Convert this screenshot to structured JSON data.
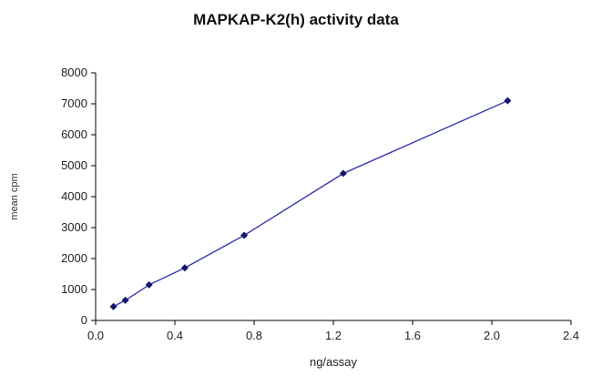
{
  "chart_data": {
    "type": "line",
    "title": "MAPKAP-K2(h) activity data",
    "xlabel": "ng/assay",
    "ylabel": "mean cpm",
    "x": [
      0.09,
      0.15,
      0.27,
      0.45,
      0.75,
      1.25,
      2.08
    ],
    "y": [
      450,
      650,
      1150,
      1700,
      2750,
      4750,
      7100
    ],
    "xlim": [
      0,
      2.4
    ],
    "ylim": [
      0,
      8000
    ],
    "xticks": [
      0,
      0.4,
      0.8,
      1.2,
      1.6,
      2.0,
      2.4
    ],
    "xtick_labels": [
      "0.0",
      "0.4",
      "0.8",
      "1.2",
      "1.6",
      "2.0",
      "2.4"
    ],
    "yticks": [
      0,
      1000,
      2000,
      3000,
      4000,
      5000,
      6000,
      7000,
      8000
    ],
    "grid": false,
    "legend": "none",
    "line_color": "#3a3ab0",
    "marker": "diamond",
    "marker_color": "#16166b",
    "axis_color": "#000000"
  }
}
